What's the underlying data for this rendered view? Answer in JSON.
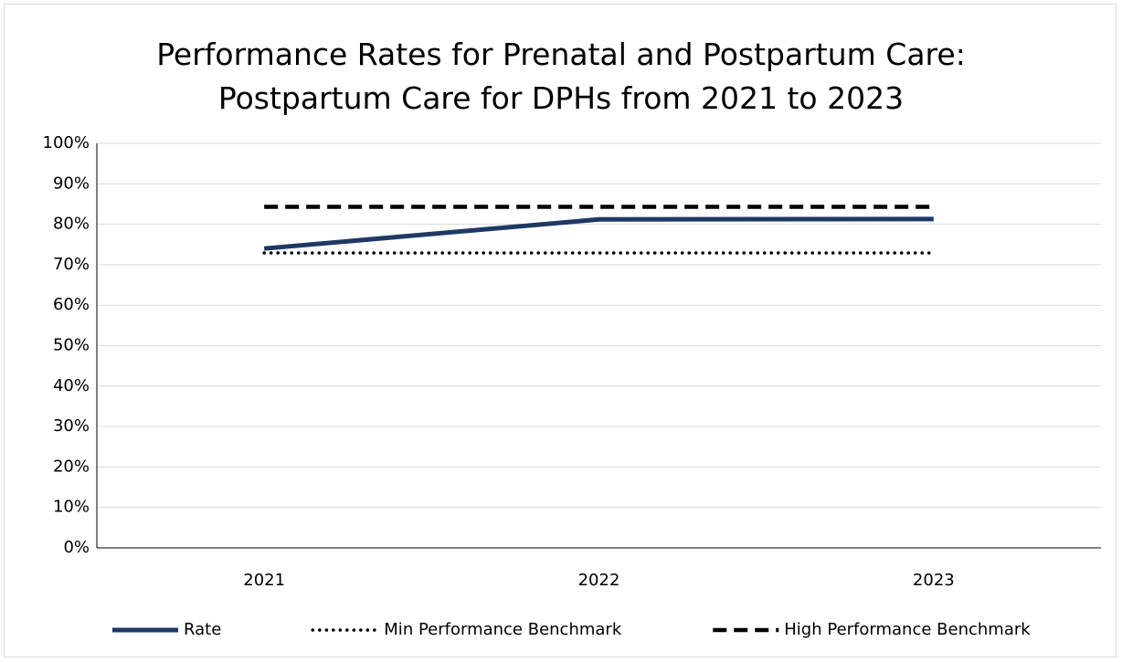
{
  "chart_data": {
    "type": "line",
    "title": "Performance Rates for Prenatal and Postpartum Care: Postpartum Care for DPHs from 2021 to 2023",
    "categories": [
      "2021",
      "2022",
      "2023"
    ],
    "series": [
      {
        "name": "Rate",
        "color": "#1f3864",
        "dash": "solid",
        "values": [
          74.0,
          81.2,
          81.3
        ]
      },
      {
        "name": "Min Performance Benchmark",
        "color": "#000000",
        "dash": "dotted",
        "values": [
          72.9,
          72.9,
          72.9
        ]
      },
      {
        "name": "High Performance Benchmark",
        "color": "#000000",
        "dash": "dashed",
        "values": [
          84.3,
          84.3,
          84.3
        ]
      }
    ],
    "ylim": [
      0,
      100
    ],
    "yticks": [
      {
        "value": 0,
        "label": "0%"
      },
      {
        "value": 10,
        "label": "10%"
      },
      {
        "value": 20,
        "label": "20%"
      },
      {
        "value": 30,
        "label": "30%"
      },
      {
        "value": 40,
        "label": "40%"
      },
      {
        "value": 50,
        "label": "50%"
      },
      {
        "value": 60,
        "label": "60%"
      },
      {
        "value": 70,
        "label": "70%"
      },
      {
        "value": 80,
        "label": "80%"
      },
      {
        "value": 90,
        "label": "90%"
      },
      {
        "value": 100,
        "label": "100%"
      }
    ],
    "grid": true,
    "legend": "bottom"
  }
}
